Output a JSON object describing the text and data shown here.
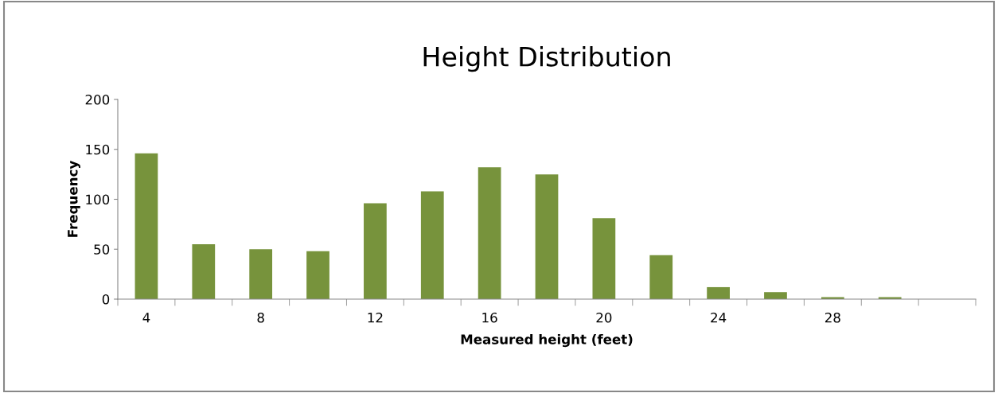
{
  "chart_data": {
    "type": "bar",
    "title": "Height Distribution",
    "xlabel": "Measured height (feet)",
    "ylabel": "Frequency",
    "categories": [
      "4",
      null,
      "8",
      null,
      "12",
      null,
      "16",
      null,
      "20",
      null,
      "24",
      null,
      "28",
      null,
      null
    ],
    "values": [
      146,
      55,
      50,
      48,
      96,
      108,
      132,
      125,
      81,
      44,
      12,
      7,
      2,
      2,
      null
    ],
    "color": "#77933c",
    "ylim": [
      0,
      200
    ],
    "yticks": [
      0,
      50,
      100,
      150,
      200
    ],
    "grid": false,
    "legend": false
  }
}
